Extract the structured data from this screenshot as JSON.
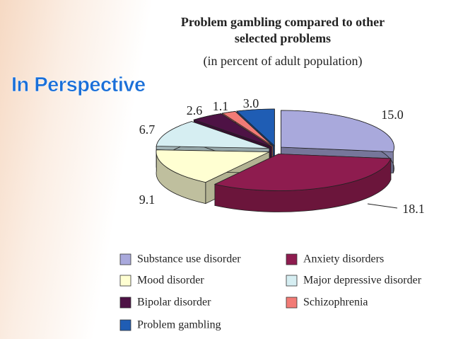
{
  "heading": "In Perspective",
  "chart_data": {
    "type": "pie",
    "title": "Problem gambling compared to other selected problems",
    "subtitle": "(in percent of adult population)",
    "categories": [
      "Substance use disorder",
      "Anxiety disorders",
      "Mood disorder",
      "Major depressive disorder",
      "Bipolar disorder",
      "Schizophrenia",
      "Problem gambling"
    ],
    "values": [
      15.0,
      18.1,
      9.1,
      6.7,
      2.6,
      1.1,
      3.0
    ],
    "value_labels": [
      "15.0",
      "18.1",
      "9.1",
      "6.7",
      "2.6",
      "1.1",
      "3.0"
    ],
    "colors": [
      "#a9a9dc",
      "#8e1c4f",
      "#ffffd2",
      "#d6eef2",
      "#4e1245",
      "#f27b76",
      "#1f5db4"
    ]
  }
}
